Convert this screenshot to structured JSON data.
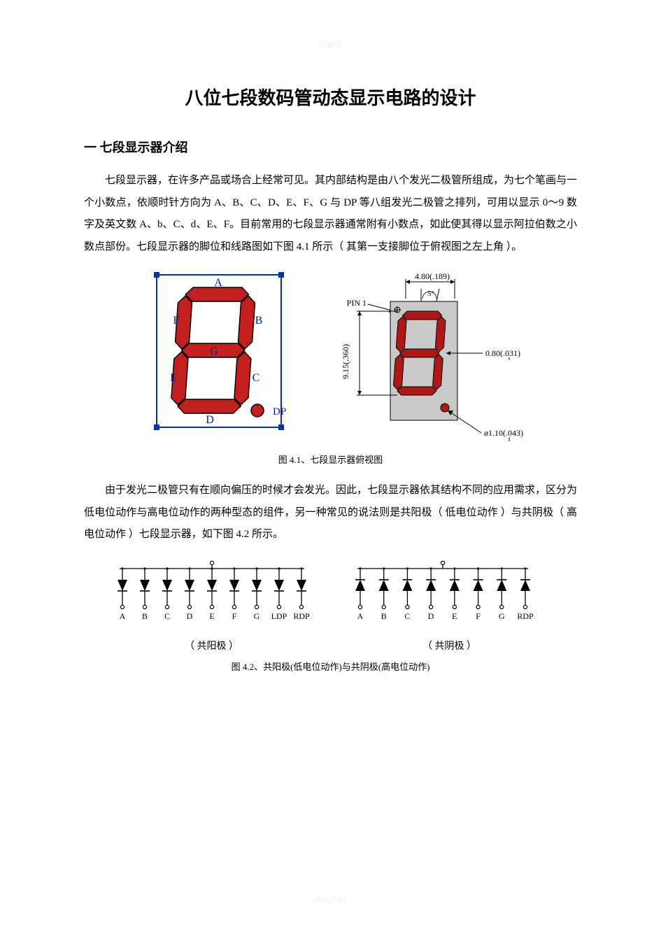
{
  "watermark": {
    "top": "可编辑",
    "bottom": "精品文档"
  },
  "title": "八位七段数码管动态显示电路的设计",
  "section1": {
    "heading": "一 七段显示器介绍",
    "para1": "七段显示器，在许多产品或场合上经常可见。其内部结构是由八个发光二极管所组成，为七个笔画与一个小数点，依顺时针方向为 A、B、C、D、E、F、G 与 DP 等八组发光二极管之排列，可用以显示 0～9 数字及英文数 A、b、C、d、E、F。目前常用的七段显示器通常附有小数点，如此使其得以显示阿拉伯数之小数点部份。七段显示器的脚位和线路图如下图 4.1 所示（ 其第一支接脚位于俯视图之左上角 ）。",
    "para2": "由于发光二极管只有在顺向偏压的时候才会发光。因此，七段显示器依其结构不同的应用需求，区分为低电位动作与高电位动作的两种型态的组件，另一种常见的说法则是共阳极（ 低电位动作 ）与共阴极（ 高电位动作 ）七段显示器，如下图 4.2 所示。"
  },
  "figure41": {
    "caption": "图 4.1、七段显示器俯视图",
    "segments": {
      "labels": {
        "A": "A",
        "B": "B",
        "C": "C",
        "D": "D",
        "E": "E",
        "F": "F",
        "G": "G",
        "DP": "DP"
      },
      "seg_color": "#c21f1f",
      "seg_outline": "#000000",
      "bg": "#ffffff",
      "border": "#0033aa",
      "label_color": "#0022aa",
      "label_fontsize": 16
    },
    "dimensions": {
      "top_label": "4.80(.189)",
      "angle_label": "5°",
      "pin_label": "PIN 1",
      "left_label": "9.15(.360)",
      "right_label": "0.80(.031)",
      "dia_label": "ø1.10(.043)",
      "body_fill": "#c9c9c9",
      "seg_color": "#b01818",
      "dim_color": "#000000",
      "label_fontsize": 12
    }
  },
  "figure42": {
    "caption": "图 4.2、共阳极(低电位动作)与共阴极(高电位动作)",
    "common_anode": {
      "labels": [
        "A",
        "B",
        "C",
        "D",
        "E",
        "F",
        "G",
        "LDP",
        "RDP"
      ],
      "sub": "（ 共阳极 ）",
      "diode_fill": "#000000",
      "wire_color": "#000000",
      "circle_r": 2.4
    },
    "common_cathode": {
      "labels": [
        "A",
        "B",
        "C",
        "D",
        "E",
        "F",
        "G",
        "RDP"
      ],
      "sub": "（ 共阴极 ）",
      "diode_fill": "#000000",
      "wire_color": "#000000",
      "circle_r": 2.4
    },
    "label_fontsize": 12
  },
  "colors": {
    "text": "#000000",
    "background": "#ffffff"
  }
}
